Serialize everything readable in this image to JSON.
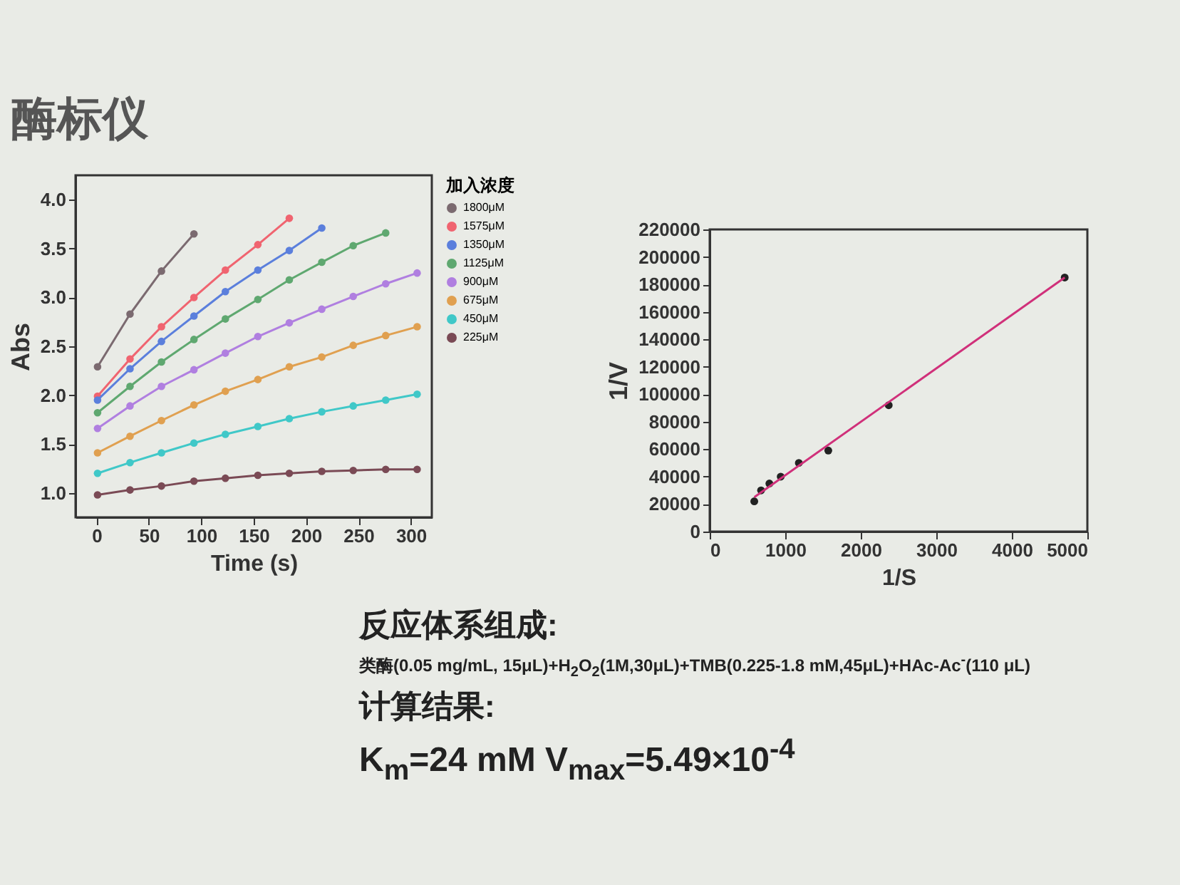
{
  "chart_data": [
    {
      "type": "line",
      "title": "酶标仪",
      "xlabel": "Time (s)",
      "ylabel": "Abs",
      "legend_title": "加入浓度",
      "legend": "right",
      "marker": "circle",
      "grid": false,
      "xlim": [
        -20,
        320
      ],
      "ylim": [
        0.75,
        4.25
      ],
      "xticks": [
        0,
        50,
        100,
        150,
        200,
        250,
        300
      ],
      "yticks": [
        {
          "value": 1,
          "label": "1.0"
        },
        {
          "value": 1.5,
          "label": "1.5"
        },
        {
          "value": 2,
          "label": "2.0"
        },
        {
          "value": 2.5,
          "label": "2.5"
        },
        {
          "value": 3,
          "label": "3.0"
        },
        {
          "value": 3.5,
          "label": "3.5"
        },
        {
          "value": 4,
          "label": "4.0"
        }
      ],
      "x": [
        1,
        32,
        62,
        93,
        123,
        154,
        184,
        215,
        245,
        276,
        306
      ],
      "series": [
        {
          "name": "1800μM",
          "color": "#7b6a70",
          "values": [
            2.29,
            2.83,
            3.27,
            3.65,
            null,
            null,
            null,
            null,
            null,
            null,
            null
          ]
        },
        {
          "name": "1575μM",
          "color": "#f06470",
          "values": [
            1.99,
            2.37,
            2.7,
            3.0,
            3.28,
            3.54,
            3.81,
            null,
            null,
            null,
            null
          ]
        },
        {
          "name": "1350μM",
          "color": "#5b7fdc",
          "values": [
            1.95,
            2.27,
            2.55,
            2.81,
            3.06,
            3.28,
            3.48,
            3.71,
            null,
            null,
            null
          ]
        },
        {
          "name": "1125μM",
          "color": "#5fa870",
          "values": [
            1.82,
            2.09,
            2.34,
            2.57,
            2.78,
            2.98,
            3.18,
            3.36,
            3.53,
            3.66,
            null
          ]
        },
        {
          "name": "900μM",
          "color": "#b07fe0",
          "values": [
            1.66,
            1.89,
            2.09,
            2.26,
            2.43,
            2.6,
            2.74,
            2.88,
            3.01,
            3.14,
            3.25
          ]
        },
        {
          "name": "675μM",
          "color": "#e0a050",
          "values": [
            1.41,
            1.58,
            1.74,
            1.9,
            2.04,
            2.16,
            2.29,
            2.39,
            2.51,
            2.61,
            2.7
          ]
        },
        {
          "name": "450μM",
          "color": "#40c8c8",
          "values": [
            1.2,
            1.31,
            1.41,
            1.51,
            1.6,
            1.68,
            1.76,
            1.83,
            1.89,
            1.95,
            2.01
          ]
        },
        {
          "name": "225μM",
          "color": "#7a4a55",
          "values": [
            0.98,
            1.03,
            1.07,
            1.12,
            1.15,
            1.18,
            1.2,
            1.22,
            1.23,
            1.24,
            1.24
          ]
        }
      ]
    },
    {
      "type": "scatter",
      "xlabel": "1/S",
      "ylabel": "1/V",
      "grid": false,
      "marker": "circle",
      "xlim": [
        0,
        5000
      ],
      "ylim": [
        0,
        220000
      ],
      "xticks": [
        0,
        1000,
        2000,
        3000,
        4000,
        5000
      ],
      "yticks": [
        0,
        20000,
        40000,
        60000,
        80000,
        100000,
        120000,
        140000,
        160000,
        180000,
        200000,
        220000
      ],
      "annotations": [
        "反应体系组成:",
        "类酶(0.05 mg/mL, 15μL)+H$_{2}$O$_{2}$(1M,30μL)+TMB(0.225-1.8 mM,45μL)+HAc-Ac$^{-}$(110 μL)",
        "计算结果:",
        "K$_{m}$=24 mM    V$_{max}$=5.49×10$^{-4}$"
      ],
      "series": [
        {
          "color": "#222222",
          "x": [
            590,
            680,
            790,
            940,
            1180,
            1570,
            2370,
            4700
          ],
          "values": [
            22000,
            30000,
            35000,
            40000,
            50000,
            59000,
            92000,
            185000
          ]
        },
        {
          "type": "line",
          "color": "#d0307a",
          "marker": "none",
          "x": [
            590,
            4700
          ],
          "values": [
            25000,
            185000
          ]
        }
      ]
    }
  ]
}
